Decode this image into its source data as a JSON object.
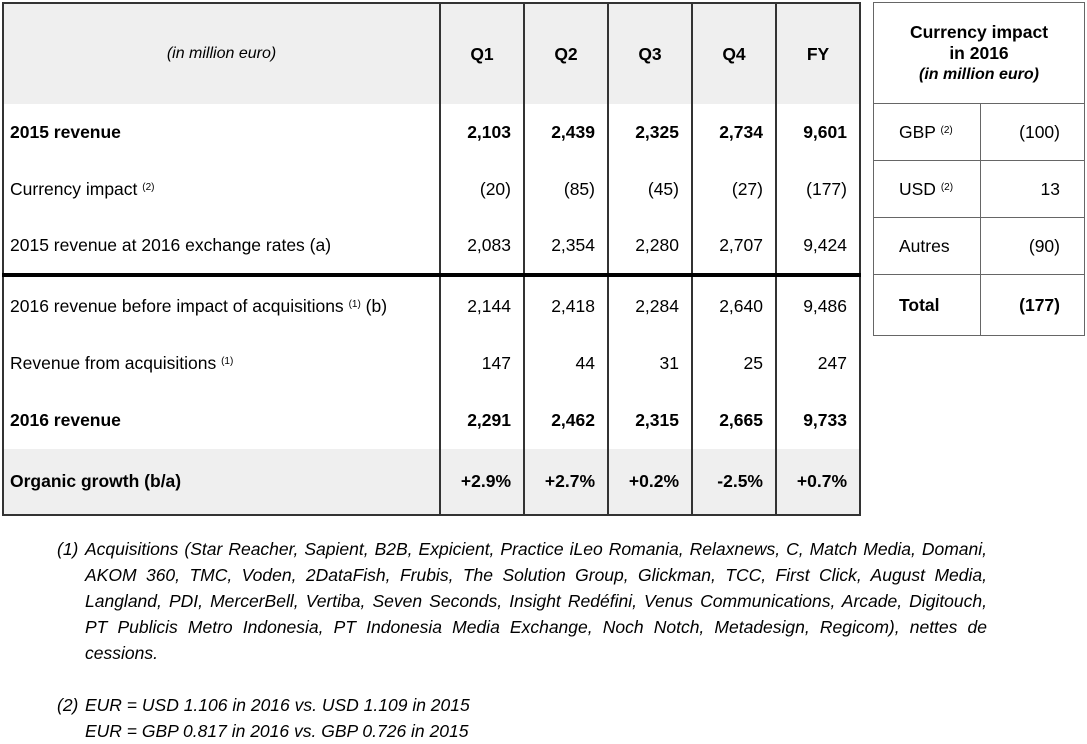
{
  "main_table": {
    "unit_label": "(in million euro)",
    "columns": [
      "Q1",
      "Q2",
      "Q3",
      "Q4",
      "FY"
    ],
    "rows": [
      {
        "label": "2015 revenue",
        "sup": "",
        "suffix": "",
        "values": [
          "2,103",
          "2,439",
          "2,325",
          "2,734",
          "9,601"
        ]
      },
      {
        "label": "Currency impact",
        "sup": "(2)",
        "suffix": "",
        "values": [
          "(20)",
          "(85)",
          "(45)",
          "(27)",
          "(177)"
        ]
      },
      {
        "label": "2015 revenue at 2016 exchange rates (a)",
        "sup": "",
        "suffix": "",
        "values": [
          "2,083",
          "2,354",
          "2,280",
          "2,707",
          "9,424"
        ]
      },
      {
        "label": "2016 revenue before impact of acquisitions",
        "sup": "(1)",
        "suffix": " (b)",
        "values": [
          "2,144",
          "2,418",
          "2,284",
          "2,640",
          "9,486"
        ]
      },
      {
        "label": "Revenue from acquisitions",
        "sup": "(1)",
        "suffix": "",
        "values": [
          "147",
          "44",
          "31",
          "25",
          "247"
        ]
      },
      {
        "label": "2016 revenue",
        "sup": "",
        "suffix": "",
        "values": [
          "2,291",
          "2,462",
          "2,315",
          "2,665",
          "9,733"
        ]
      },
      {
        "label": "Organic growth (b/a)",
        "sup": "",
        "suffix": "",
        "values": [
          "+2.9%",
          "+2.7%",
          "+0.2%",
          "-2.5%",
          "+0.7%"
        ]
      }
    ]
  },
  "currency_table": {
    "title_line1": "Currency impact",
    "title_line2": "in 2016",
    "unit": "(in million euro)",
    "rows": [
      {
        "currency": "GBP",
        "sup": "(2)",
        "value": "(100)"
      },
      {
        "currency": "USD",
        "sup": "(2)",
        "value": "13"
      },
      {
        "currency": "Autres",
        "sup": "",
        "value": "(90)"
      },
      {
        "currency": "Total",
        "sup": "",
        "value": "(177)"
      }
    ]
  },
  "footnotes": [
    {
      "marker": "(1)",
      "text": "Acquisitions (Star Reacher, Sapient, B2B, Expicient, Practice iLeo Romania, Relaxnews, C, Match Media, Domani, AKOM 360, TMC, Voden, 2DataFish, Frubis, The Solution Group, Glickman, TCC, First Click, August Media, Langland, PDI, MercerBell, Vertiba, Seven Seconds, Insight Redéfini, Venus Communications, Arcade, Digitouch, PT Publicis Metro Indonesia, PT Indonesia Media Exchange, Noch Notch, Metadesign, Regicom), nettes de cessions."
    },
    {
      "marker": "(2)",
      "line1": "EUR = USD 1.106 in 2016 vs. USD 1.109 in 2015",
      "line2": "EUR = GBP 0.817 in 2016 vs. GBP 0.726 in 2015"
    }
  ]
}
